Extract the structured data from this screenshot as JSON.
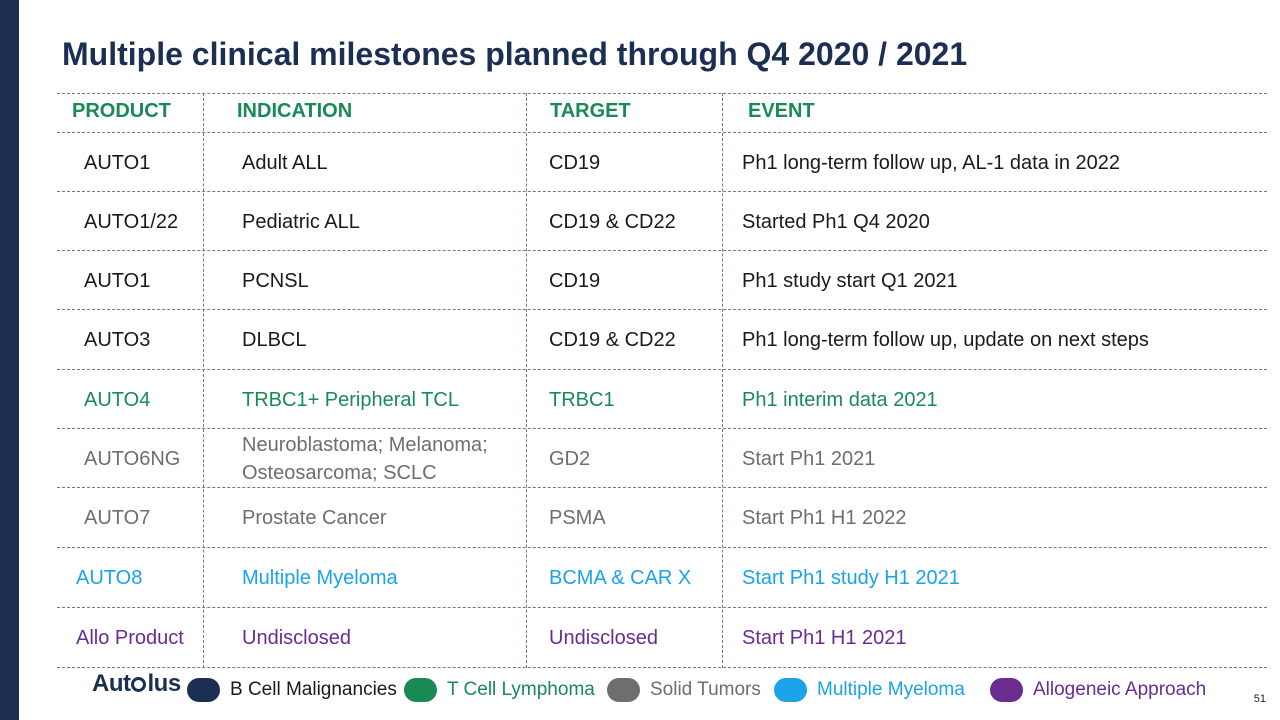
{
  "title": "Multiple clinical milestones planned through Q4 2020 / 2021",
  "headers": {
    "product": "PRODUCT",
    "indication": "INDICATION",
    "target": "TARGET",
    "event": "EVENT"
  },
  "colors": {
    "navy": "#1c2f52",
    "green": "#198a55",
    "gray": "#6e6e6e",
    "blue": "#1aa3e8",
    "purple": "#6a2c91",
    "black": "#1a1a1a"
  },
  "rows": [
    {
      "product": "AUTO1",
      "indication": "Adult ALL",
      "target": "CD19",
      "event": "Ph1 long-term follow up, AL-1 data in 2022",
      "category": "b-cell"
    },
    {
      "product": "AUTO1/22",
      "indication": "Pediatric ALL",
      "target": "CD19 & CD22",
      "event": "Started Ph1 Q4 2020",
      "category": "b-cell"
    },
    {
      "product": "AUTO1",
      "indication": "PCNSL",
      "target": "CD19",
      "event": "Ph1 study start Q1 2021",
      "category": "b-cell"
    },
    {
      "product": "AUTO3",
      "indication": "DLBCL",
      "target": "CD19 & CD22",
      "event": "Ph1 long-term follow up, update on next steps",
      "category": "b-cell"
    },
    {
      "product": "AUTO4",
      "indication": "TRBC1+ Peripheral TCL",
      "target": "TRBC1",
      "event": "Ph1 interim data 2021",
      "category": "t-cell"
    },
    {
      "product": "AUTO6NG",
      "indication": "Neuroblastoma; Melanoma; Osteosarcoma; SCLC",
      "target": "GD2",
      "event": "Start Ph1 2021",
      "category": "solid"
    },
    {
      "product": "AUTO7",
      "indication": "Prostate Cancer",
      "target": "PSMA",
      "event": "Start Ph1 H1 2022",
      "category": "solid"
    },
    {
      "product": "AUTO8",
      "indication": "Multiple Myeloma",
      "target": "BCMA & CAR X",
      "event": "Start Ph1 study H1 2021",
      "category": "myeloma"
    },
    {
      "product": "Allo Product",
      "indication": "Undisclosed",
      "target": "Undisclosed",
      "event": "Start Ph1 H1 2021",
      "category": "allo"
    }
  ],
  "legend": [
    {
      "label": "B Cell Malignancies",
      "color": "#1c2f52",
      "text_color": "#1a1a1a"
    },
    {
      "label": "T Cell Lymphoma",
      "color": "#198a55",
      "text_color": "#198a55"
    },
    {
      "label": "Solid Tumors",
      "color": "#6e6e6e",
      "text_color": "#6e6e6e"
    },
    {
      "label": "Multiple Myeloma",
      "color": "#1aa3e8",
      "text_color": "#1aa3e8"
    },
    {
      "label": "Allogeneic Approach",
      "color": "#6a2c91",
      "text_color": "#6a2c91"
    }
  ],
  "logo": {
    "text": "Autolus"
  },
  "page_number": "51"
}
